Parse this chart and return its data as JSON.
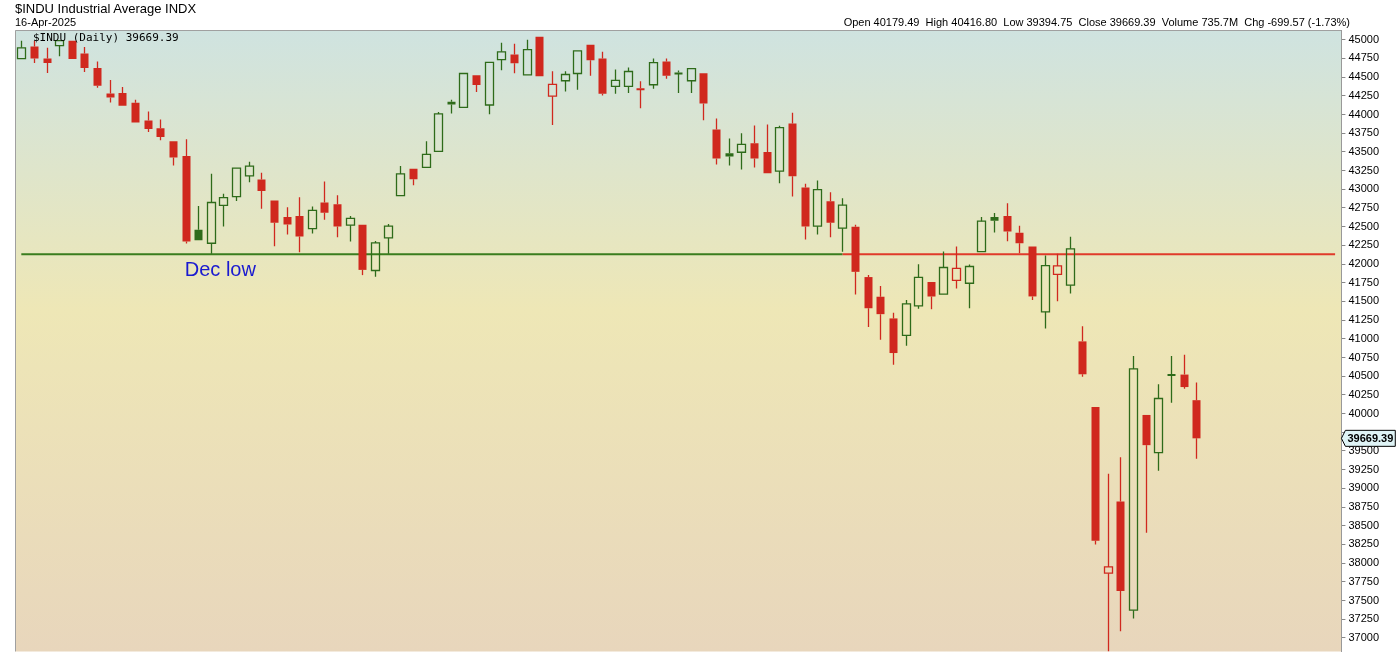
{
  "chart_data": {
    "type": "candlestick",
    "title": "$INDU Industrial Average INDX",
    "subtitle": "16-Apr-2025",
    "annotations": [
      "Open 40179.49  High 40416.80  Low 39394.75  Close 39669.39  Volume 735.7M  Chg -699.57 (-1.73%)",
      "$INDU (Daily) 39669.39",
      {
        "text": "Dec low",
        "y": 42130
      },
      "39669.39"
    ],
    "categories": [
      null,
      null,
      null,
      null,
      null,
      null,
      null,
      null,
      null,
      null,
      null,
      null,
      null,
      null,
      null,
      null,
      null,
      null,
      null,
      null,
      null,
      null,
      null,
      null,
      null,
      null,
      null,
      null,
      null,
      null,
      null,
      null,
      null,
      null,
      null,
      null,
      null,
      null,
      null,
      null,
      null,
      null,
      null,
      null,
      null,
      null,
      null,
      null,
      null,
      null,
      null,
      null,
      null,
      null,
      null,
      null,
      null,
      null,
      null,
      null,
      null,
      null,
      null,
      null,
      null,
      null,
      null,
      null,
      null,
      null,
      null,
      null,
      null,
      null,
      null,
      null,
      null,
      null,
      null,
      null,
      null,
      null,
      null,
      null,
      null,
      null,
      null,
      null,
      null,
      null,
      null,
      null,
      null,
      null,
      null,
      null,
      null,
      null,
      null,
      null,
      null,
      null,
      null,
      null,
      null
    ],
    "ohlc": [
      [
        44746,
        44987,
        44746,
        44891
      ],
      [
        44908,
        44987,
        44688,
        44750
      ],
      [
        44750,
        44891,
        44556,
        44688
      ],
      [
        44921,
        45000,
        44780,
        44987
      ],
      [
        44987,
        45000,
        44727,
        44741
      ],
      [
        44816,
        44904,
        44569,
        44622
      ],
      [
        44622,
        44710,
        44359,
        44385
      ],
      [
        44280,
        44460,
        44161,
        44227
      ],
      [
        44289,
        44368,
        44104,
        44118
      ],
      [
        44157,
        44197,
        43881,
        43894
      ],
      [
        43920,
        44039,
        43766,
        43805
      ],
      [
        43815,
        43933,
        43657,
        43700
      ],
      [
        43643,
        43643,
        43318,
        43424
      ],
      [
        43446,
        43670,
        42274,
        42300
      ],
      [
        42458,
        42778,
        42317,
        42317
      ],
      [
        42278,
        43209,
        42138,
        42823
      ],
      [
        42784,
        42941,
        42502,
        42889
      ],
      [
        42902,
        43284,
        42844,
        43284
      ],
      [
        43179,
        43367,
        43094,
        43310
      ],
      [
        43130,
        43222,
        42739,
        42976
      ],
      [
        42849,
        42849,
        42238,
        42554
      ],
      [
        42629,
        42761,
        42396,
        42528
      ],
      [
        42643,
        42893,
        42159,
        42370
      ],
      [
        42475,
        42770,
        42409,
        42717
      ],
      [
        42823,
        43104,
        42594,
        42686
      ],
      [
        42801,
        42919,
        42357,
        42502
      ],
      [
        42520,
        42643,
        42300,
        42612
      ],
      [
        42524,
        42524,
        41852,
        41922
      ],
      [
        41914,
        42309,
        41830,
        42283
      ],
      [
        42349,
        42537,
        42138,
        42507
      ],
      [
        42915,
        43310,
        42915,
        43205
      ],
      [
        43275,
        43275,
        43055,
        43134
      ],
      [
        43292,
        43643,
        43292,
        43468
      ],
      [
        43508,
        44035,
        43508,
        44008
      ],
      [
        44170,
        44197,
        44012,
        44135
      ],
      [
        44095,
        44548,
        44095,
        44548
      ],
      [
        44526,
        44526,
        44302,
        44394
      ],
      [
        44127,
        44714,
        44003,
        44697
      ],
      [
        44733,
        44960,
        44592,
        44838
      ],
      [
        44802,
        44947,
        44552,
        44684
      ],
      [
        44530,
        45000,
        44530,
        44868
      ],
      [
        45040,
        45040,
        44496,
        44513
      ],
      [
        44245,
        44579,
        43858,
        44403
      ],
      [
        44451,
        44579,
        44306,
        44535
      ],
      [
        44548,
        44868,
        44332,
        44851
      ],
      [
        44934,
        44947,
        44517,
        44727
      ],
      [
        44750,
        44838,
        44253,
        44276
      ],
      [
        44377,
        44601,
        44276,
        44456
      ],
      [
        44377,
        44627,
        44289,
        44575
      ],
      [
        44350,
        44443,
        44082,
        44335
      ],
      [
        44398,
        44750,
        44345,
        44693
      ],
      [
        44710,
        44750,
        44477,
        44517
      ],
      [
        44560,
        44588,
        44289,
        44540
      ],
      [
        44451,
        44627,
        44289,
        44614
      ],
      [
        44552,
        44552,
        43924,
        44148
      ],
      [
        43801,
        43946,
        43331,
        43410
      ],
      [
        43481,
        43679,
        43318,
        43437
      ],
      [
        43495,
        43749,
        43266,
        43600
      ],
      [
        43617,
        43854,
        43292,
        43410
      ],
      [
        43499,
        43867,
        43200,
        43213
      ],
      [
        43244,
        43850,
        43081,
        43824
      ],
      [
        43881,
        44025,
        42902,
        43173
      ],
      [
        43025,
        43073,
        42330,
        42502
      ],
      [
        42507,
        43116,
        42396,
        42994
      ],
      [
        42840,
        42959,
        42357,
        42554
      ],
      [
        42480,
        42880,
        42165,
        42787
      ],
      [
        42498,
        42524,
        41593,
        41896
      ],
      [
        41826,
        41852,
        41158,
        41409
      ],
      [
        41563,
        41708,
        40987,
        41330
      ],
      [
        41273,
        41348,
        40654,
        40810
      ],
      [
        41045,
        41519,
        40908,
        41467
      ],
      [
        41440,
        41997,
        41401,
        41822
      ],
      [
        41760,
        41773,
        41396,
        41566
      ],
      [
        41598,
        42168,
        41598,
        41954
      ],
      [
        41783,
        42234,
        41672,
        41941
      ],
      [
        41743,
        41993,
        41409,
        41967
      ],
      [
        42165,
        42629,
        42165,
        42573
      ],
      [
        42630,
        42682,
        42423,
        42580
      ],
      [
        42643,
        42814,
        42304,
        42436
      ],
      [
        42419,
        42511,
        42146,
        42278
      ],
      [
        42234,
        42248,
        41519,
        41567
      ],
      [
        41361,
        42116,
        41137,
        41980
      ],
      [
        41862,
        42138,
        41501,
        41975
      ],
      [
        41717,
        42366,
        41606,
        42204
      ],
      [
        40966,
        41168,
        40492,
        40526
      ],
      [
        40088,
        40088,
        38248,
        38301
      ],
      [
        37866,
        39196,
        36820,
        37950
      ],
      [
        38823,
        39416,
        37089,
        37629
      ],
      [
        37371,
        40772,
        37260,
        40597
      ],
      [
        39982,
        39982,
        38406,
        39578
      ],
      [
        39478,
        40391,
        39236,
        40202
      ],
      [
        40530,
        40772,
        40144,
        40510
      ],
      [
        40522,
        40786,
        40334,
        40355
      ],
      [
        40179.49,
        40416.8,
        39394.75,
        39669.39
      ],
      null,
      null,
      null,
      null,
      null,
      null,
      null,
      null,
      null,
      null,
      null
    ],
    "colors": [
      "#2e6b1a",
      "#d0281e",
      "#d0281e",
      "#2e6b1a",
      "#d0281e",
      "#d0281e",
      "#d0281e",
      "#d0281e",
      "#d0281e",
      "#d0281e",
      "#d0281e",
      "#d0281e",
      "#d0281e",
      "#d0281e",
      "#2e6b1a",
      "#2e6b1a",
      "#2e6b1a",
      "#2e6b1a",
      "#2e6b1a",
      "#d0281e",
      "#d0281e",
      "#d0281e",
      "#d0281e",
      "#2e6b1a",
      "#d0281e",
      "#d0281e",
      "#2e6b1a",
      "#d0281e",
      "#2e6b1a",
      "#2e6b1a",
      "#2e6b1a",
      "#d0281e",
      "#2e6b1a",
      "#2e6b1a",
      "#2e6b1a",
      "#2e6b1a",
      "#d0281e",
      "#2e6b1a",
      "#2e6b1a",
      "#d0281e",
      "#2e6b1a",
      "#d0281e",
      "#d0281e",
      "#2e6b1a",
      "#2e6b1a",
      "#d0281e",
      "#d0281e",
      "#2e6b1a",
      "#2e6b1a",
      "#d0281e",
      "#2e6b1a",
      "#d0281e",
      "#2e6b1a",
      "#2e6b1a",
      "#d0281e",
      "#d0281e",
      "#2e6b1a",
      "#2e6b1a",
      "#d0281e",
      "#d0281e",
      "#2e6b1a",
      "#d0281e",
      "#d0281e",
      "#2e6b1a",
      "#d0281e",
      "#2e6b1a",
      "#d0281e",
      "#d0281e",
      "#d0281e",
      "#d0281e",
      "#2e6b1a",
      "#2e6b1a",
      "#d0281e",
      "#2e6b1a",
      "#d0281e",
      "#2e6b1a",
      "#2e6b1a",
      "#2e6b1a",
      "#d0281e",
      "#d0281e",
      "#d0281e",
      "#2e6b1a",
      "#d0281e",
      "#2e6b1a",
      "#d0281e",
      "#d0281e",
      "#d0281e",
      "#d0281e",
      "#2e6b1a",
      "#d0281e",
      "#2e6b1a",
      "#2e6b1a",
      "#d0281e",
      "#d0281e",
      null,
      null,
      null,
      null,
      null,
      null,
      null,
      null,
      null,
      null,
      null
    ],
    "series": [
      {
        "type": "line",
        "color": "#3a7d1e",
        "values": [
          42130,
          42130,
          42130,
          42130,
          42130,
          42130,
          42130,
          42130,
          42130,
          42130,
          42130,
          42130,
          42130,
          42130,
          42130,
          42130,
          42130,
          42130,
          42130,
          42130,
          42130,
          42130,
          42130,
          42130,
          42130,
          42130,
          42130,
          null,
          42130,
          42130,
          42130,
          42130,
          42130,
          42130,
          42130,
          42130,
          42130,
          42130,
          42130,
          42130,
          42130,
          42130,
          42130,
          42130,
          42130,
          42130,
          42130,
          42130,
          42130,
          42130,
          42130,
          42130,
          42130,
          42130,
          42130,
          42130,
          42130,
          42130,
          42130,
          42130,
          42130,
          42130,
          42130,
          42130,
          42130,
          42130,
          null,
          null,
          null,
          null,
          null,
          null,
          null,
          null,
          null,
          null,
          null,
          null,
          null,
          null,
          null,
          null,
          null,
          null,
          null,
          null,
          null,
          null,
          null,
          null,
          null,
          null,
          null,
          null,
          null,
          null,
          null,
          null,
          null,
          null,
          null,
          null,
          null,
          null,
          null
        ]
      },
      {
        "type": "line",
        "color": "#e03a2a",
        "values": [
          null,
          null,
          null,
          null,
          null,
          null,
          null,
          null,
          null,
          null,
          null,
          null,
          null,
          null,
          null,
          null,
          null,
          null,
          null,
          null,
          null,
          null,
          null,
          null,
          null,
          null,
          null,
          null,
          null,
          null,
          null,
          null,
          null,
          null,
          null,
          null,
          null,
          null,
          null,
          null,
          null,
          null,
          null,
          null,
          null,
          null,
          null,
          null,
          null,
          null,
          null,
          null,
          null,
          null,
          null,
          null,
          null,
          null,
          null,
          null,
          null,
          null,
          null,
          null,
          null,
          42130,
          null,
          42130,
          42130,
          42130,
          42130,
          42130,
          42130,
          42130,
          42130,
          42130,
          42130,
          42130,
          42130,
          42130,
          null,
          42130,
          42130,
          42130,
          42130,
          42130,
          42130,
          42130,
          42130,
          42130,
          42130,
          42130,
          42130,
          42130,
          42130,
          42130,
          42130,
          42130,
          42130,
          42130,
          42130,
          42130,
          42130,
          42130,
          42130
        ]
      }
    ],
    "ylim": [
      36820,
      45130
    ],
    "yticks": [
      37000,
      37250,
      37500,
      37750,
      38000,
      38250,
      38500,
      38750,
      39000,
      39250,
      39500,
      {
        "value": 39750,
        "label": null
      },
      40000,
      40250,
      40500,
      40750,
      41000,
      41250,
      41500,
      41750,
      42000,
      42250,
      42500,
      42750,
      43000,
      43250,
      43500,
      43750,
      44000,
      44250,
      44500,
      44750,
      45000
    ],
    "grid": false,
    "legend": false,
    "tick_labels": "y"
  }
}
